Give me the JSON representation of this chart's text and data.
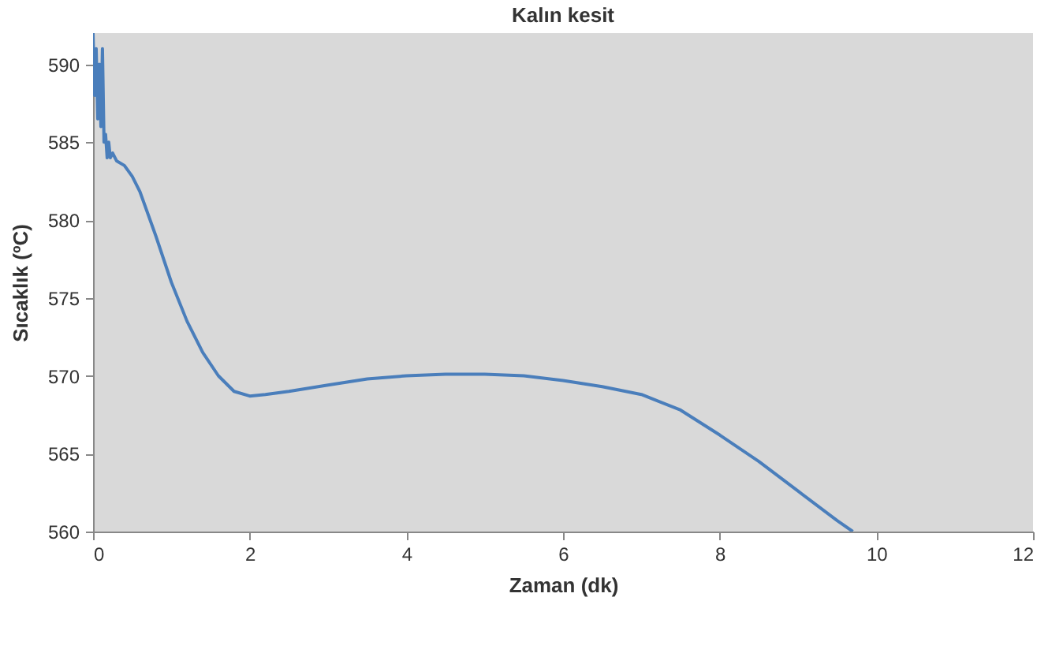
{
  "chart_data": {
    "type": "line",
    "title": "Kalın kesit",
    "xlabel": "Zaman (dk)",
    "ylabel": "Sıcaklık (ºC)",
    "x": [
      0,
      0.02,
      0.04,
      0.06,
      0.08,
      0.1,
      0.12,
      0.14,
      0.16,
      0.18,
      0.2,
      0.22,
      0.25,
      0.3,
      0.4,
      0.5,
      0.6,
      0.8,
      1.0,
      1.2,
      1.4,
      1.6,
      1.8,
      2.0,
      2.2,
      2.5,
      3,
      3.5,
      4,
      4.5,
      5,
      5.5,
      6,
      6.5,
      7,
      7.5,
      8,
      8.5,
      9,
      9.5,
      9.7
    ],
    "series": [
      {
        "color": "#4a7ebb",
        "values": [
          592,
          588,
          591,
          586.5,
          590,
          586,
          591,
          585,
          585.5,
          584,
          585,
          584,
          584.3,
          583.8,
          583.5,
          582.8,
          581.8,
          579,
          576,
          573.5,
          571.5,
          570,
          569,
          568.7,
          568.8,
          569,
          569.4,
          569.8,
          570,
          570.1,
          570.1,
          570,
          569.7,
          569.3,
          568.8,
          567.8,
          566.2,
          564.5,
          562.6,
          560.7,
          560
        ]
      }
    ],
    "xlim": [
      0,
      12
    ],
    "xticks": [
      0,
      2,
      4,
      6,
      8,
      10,
      12
    ],
    "ylim": [
      560,
      592
    ],
    "yticks": [
      560,
      565,
      570,
      575,
      580,
      585,
      590
    ],
    "grid": false
  }
}
